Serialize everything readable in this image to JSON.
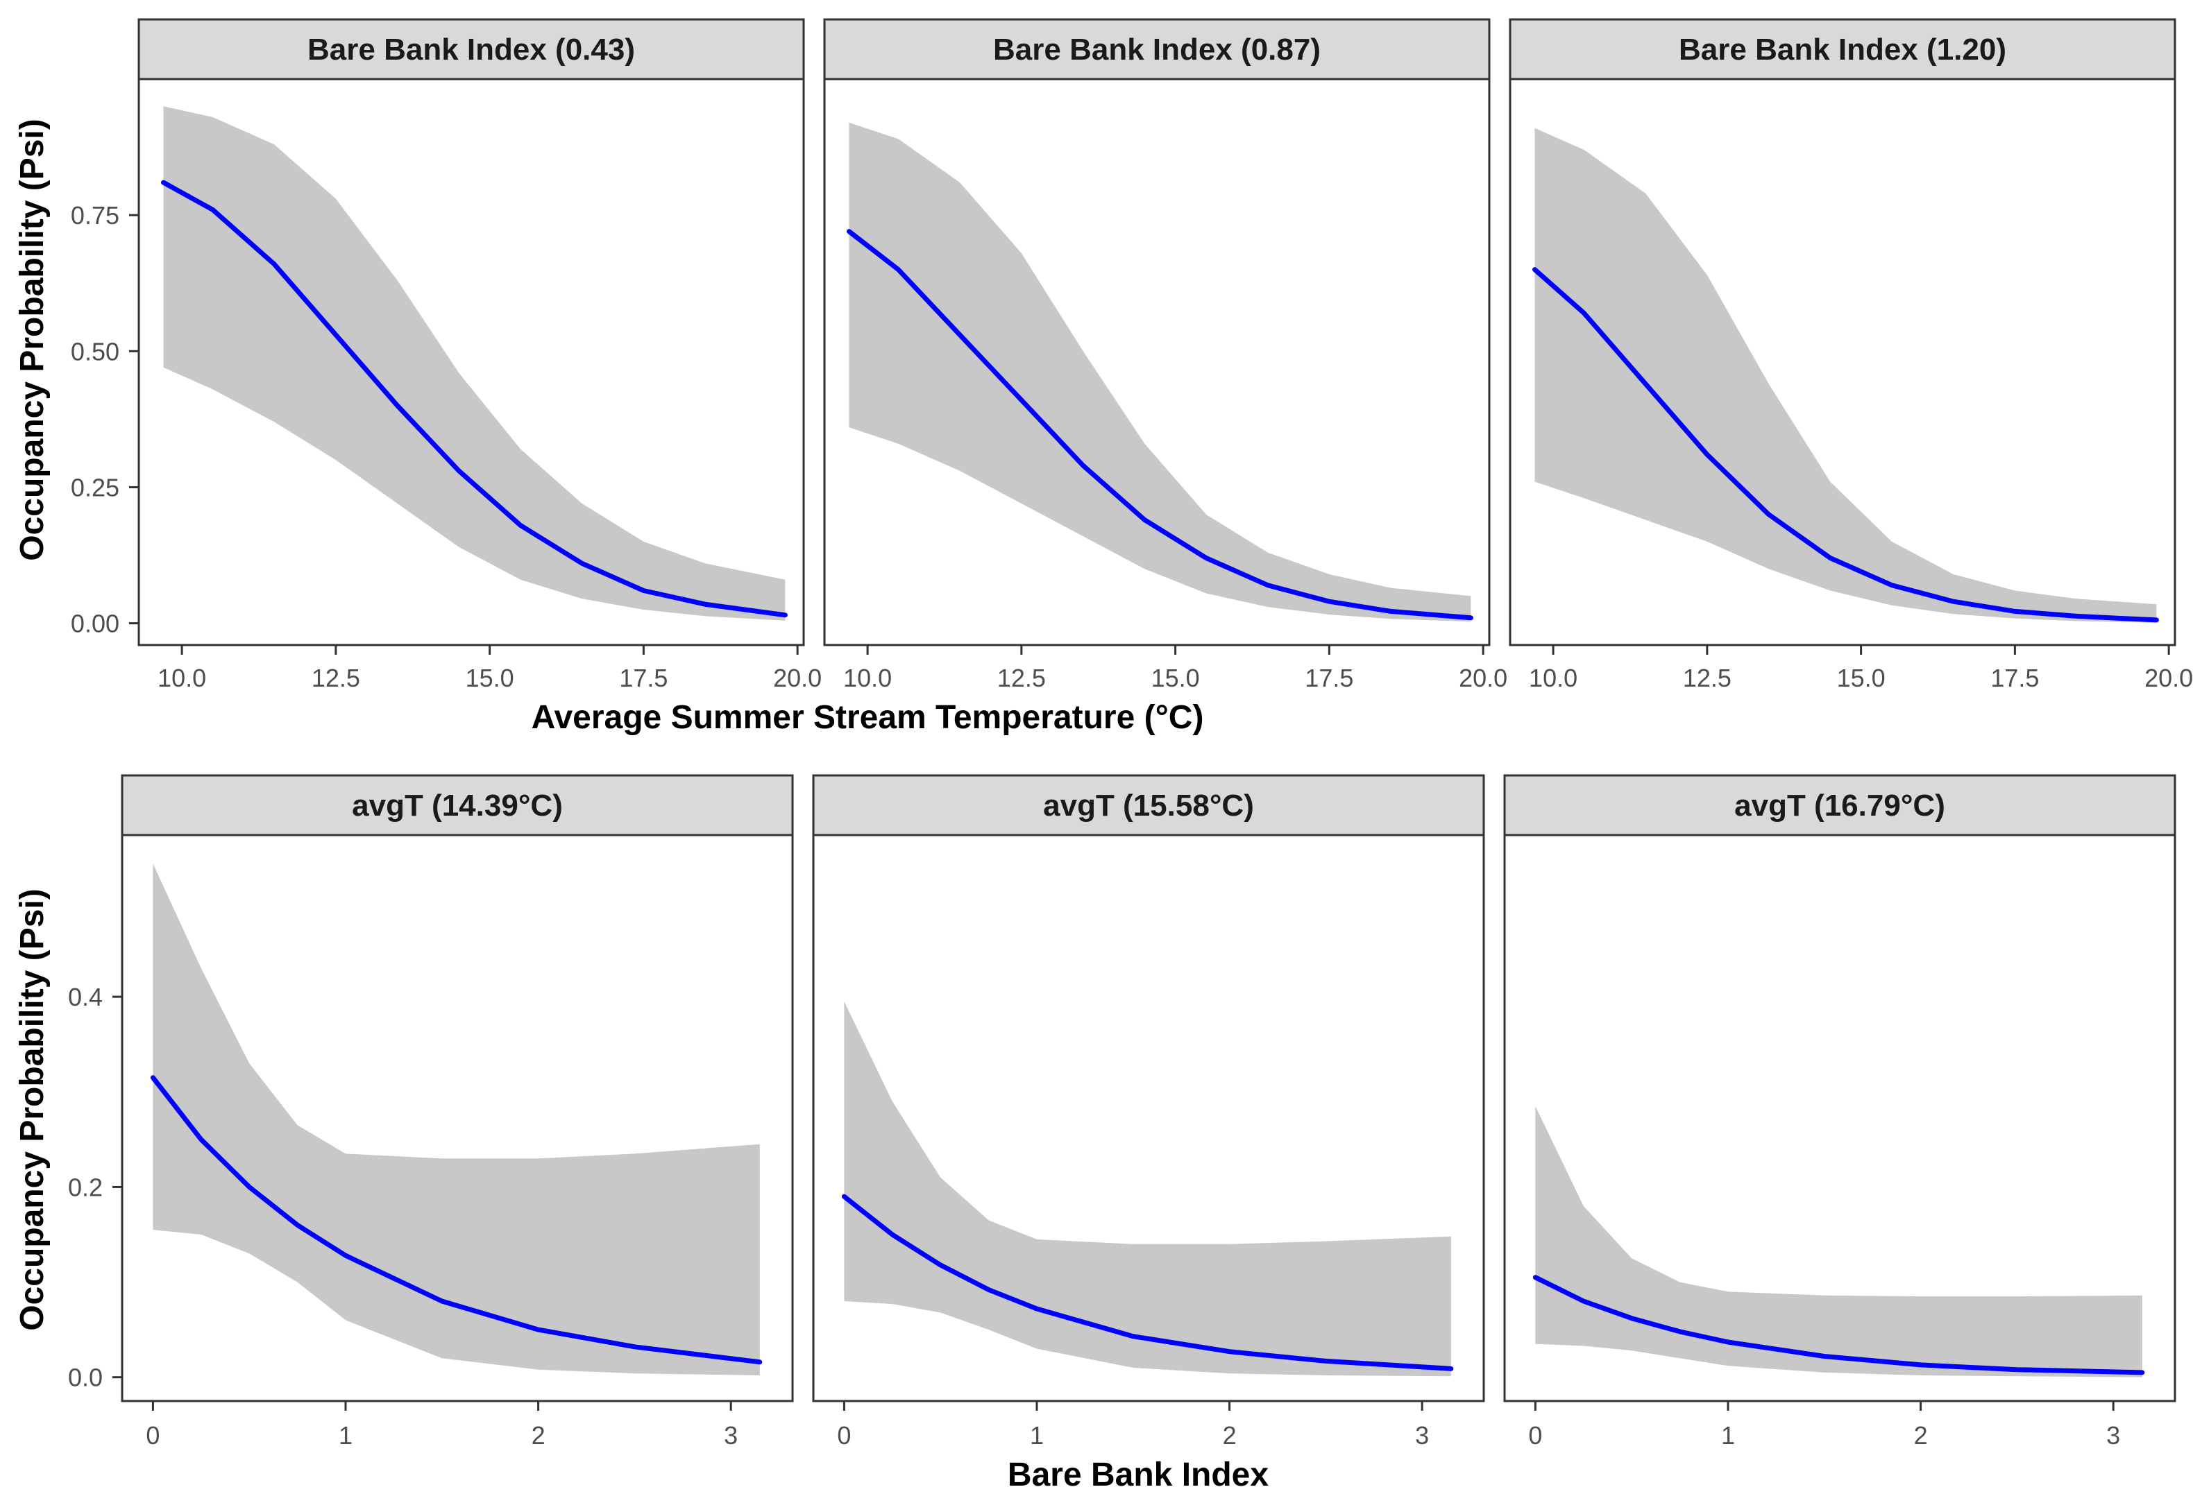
{
  "colors": {
    "line": "#0000ff",
    "ribbon": "#c8c8c8",
    "strip_fill": "#d9d9d9",
    "panel_border": "#333333",
    "tick_text": "#4d4d4d"
  },
  "chart_data": [
    {
      "type": "line",
      "facet_variable": "Bare Bank Index",
      "xlabel": "Average Summer Stream Temperature (°C)",
      "ylabel": "Occupancy Probability (Psi)",
      "xlim": [
        9.3,
        20.1
      ],
      "ylim": [
        -0.04,
        1.0
      ],
      "x_ticks": [
        10.0,
        12.5,
        15.0,
        17.5,
        20.0
      ],
      "x_tick_labels": [
        "10.0",
        "12.5",
        "15.0",
        "17.5",
        "20.0"
      ],
      "y_ticks": [
        0.0,
        0.25,
        0.5,
        0.75
      ],
      "y_tick_labels": [
        "0.00",
        "0.25",
        "0.50",
        "0.75"
      ],
      "grid": false,
      "series": [
        {
          "name": "Bare Bank Index (0.43)",
          "x": [
            9.7,
            10.5,
            11.5,
            12.5,
            13.5,
            14.5,
            15.5,
            16.5,
            17.5,
            18.5,
            19.8
          ],
          "y": [
            0.81,
            0.76,
            0.66,
            0.53,
            0.4,
            0.28,
            0.18,
            0.11,
            0.06,
            0.035,
            0.015
          ],
          "lower": [
            0.47,
            0.43,
            0.37,
            0.3,
            0.22,
            0.14,
            0.08,
            0.045,
            0.025,
            0.013,
            0.005
          ],
          "upper": [
            0.95,
            0.93,
            0.88,
            0.78,
            0.63,
            0.46,
            0.32,
            0.22,
            0.15,
            0.11,
            0.08
          ]
        },
        {
          "name": "Bare Bank Index (0.87)",
          "x": [
            9.7,
            10.5,
            11.5,
            12.5,
            13.5,
            14.5,
            15.5,
            16.5,
            17.5,
            18.5,
            19.8
          ],
          "y": [
            0.72,
            0.65,
            0.53,
            0.41,
            0.29,
            0.19,
            0.12,
            0.07,
            0.04,
            0.022,
            0.01
          ],
          "lower": [
            0.36,
            0.33,
            0.28,
            0.22,
            0.16,
            0.1,
            0.055,
            0.03,
            0.016,
            0.008,
            0.003
          ],
          "upper": [
            0.92,
            0.89,
            0.81,
            0.68,
            0.5,
            0.33,
            0.2,
            0.13,
            0.09,
            0.065,
            0.05
          ]
        },
        {
          "name": "Bare Bank Index (1.20)",
          "x": [
            9.7,
            10.5,
            11.5,
            12.5,
            13.5,
            14.5,
            15.5,
            16.5,
            17.5,
            18.5,
            19.8
          ],
          "y": [
            0.65,
            0.57,
            0.44,
            0.31,
            0.2,
            0.12,
            0.07,
            0.04,
            0.022,
            0.013,
            0.006
          ],
          "lower": [
            0.26,
            0.23,
            0.19,
            0.15,
            0.1,
            0.06,
            0.033,
            0.017,
            0.009,
            0.004,
            0.001
          ],
          "upper": [
            0.91,
            0.87,
            0.79,
            0.64,
            0.44,
            0.26,
            0.15,
            0.09,
            0.06,
            0.045,
            0.035
          ]
        }
      ]
    },
    {
      "type": "line",
      "facet_variable": "avgT",
      "xlabel": "Bare Bank Index",
      "ylabel": "Occupancy Probability (Psi)",
      "xlim": [
        -0.16,
        3.32
      ],
      "ylim": [
        -0.025,
        0.57
      ],
      "x_ticks": [
        0,
        1,
        2,
        3
      ],
      "x_tick_labels": [
        "0",
        "1",
        "2",
        "3"
      ],
      "y_ticks": [
        0.0,
        0.2,
        0.4
      ],
      "y_tick_labels": [
        "0.0",
        "0.2",
        "0.4"
      ],
      "grid": false,
      "series": [
        {
          "name": "avgT (14.39°C)",
          "x": [
            0,
            0.25,
            0.5,
            0.75,
            1.0,
            1.5,
            2.0,
            2.5,
            3.15
          ],
          "y": [
            0.315,
            0.25,
            0.2,
            0.16,
            0.128,
            0.08,
            0.05,
            0.032,
            0.016
          ],
          "lower": [
            0.155,
            0.15,
            0.13,
            0.1,
            0.06,
            0.02,
            0.008,
            0.004,
            0.002
          ],
          "upper": [
            0.54,
            0.43,
            0.33,
            0.265,
            0.235,
            0.23,
            0.23,
            0.235,
            0.245
          ]
        },
        {
          "name": "avgT (15.58°C)",
          "x": [
            0,
            0.25,
            0.5,
            0.75,
            1.0,
            1.5,
            2.0,
            2.5,
            3.15
          ],
          "y": [
            0.19,
            0.15,
            0.118,
            0.092,
            0.072,
            0.043,
            0.027,
            0.017,
            0.009
          ],
          "lower": [
            0.08,
            0.077,
            0.068,
            0.05,
            0.03,
            0.01,
            0.004,
            0.002,
            0.001
          ],
          "upper": [
            0.395,
            0.29,
            0.21,
            0.165,
            0.145,
            0.14,
            0.14,
            0.143,
            0.148
          ]
        },
        {
          "name": "avgT (16.79°C)",
          "x": [
            0,
            0.25,
            0.5,
            0.75,
            1.0,
            1.5,
            2.0,
            2.5,
            3.15
          ],
          "y": [
            0.105,
            0.08,
            0.062,
            0.048,
            0.037,
            0.022,
            0.013,
            0.008,
            0.005
          ],
          "lower": [
            0.035,
            0.033,
            0.028,
            0.02,
            0.012,
            0.005,
            0.002,
            0.001,
            0.0
          ],
          "upper": [
            0.285,
            0.18,
            0.125,
            0.1,
            0.09,
            0.086,
            0.085,
            0.085,
            0.086
          ]
        }
      ]
    }
  ]
}
